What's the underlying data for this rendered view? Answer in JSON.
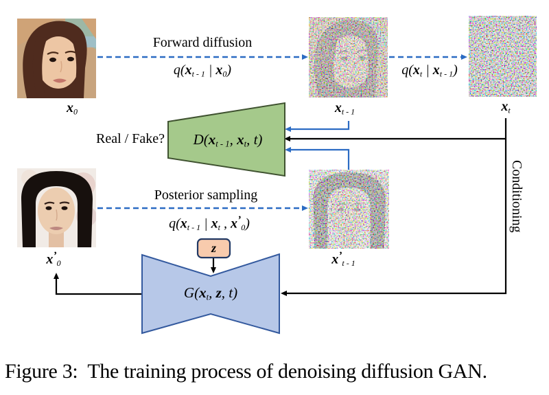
{
  "caption": "Figure 3:  The training process of denoising diffusion GAN.",
  "labels": {
    "forward_diffusion": "Forward diffusion",
    "posterior_sampling": "Posterior sampling",
    "real_fake": "Real / Fake?",
    "conditioning": "Conditioning"
  },
  "colors": {
    "arrow_blue": "#2b6bc3",
    "line_black": "#000000",
    "discriminator_fill": "#a5c98b",
    "discriminator_stroke": "#3f5230",
    "generator_fill": "#b7c8e8",
    "generator_stroke": "#33599e",
    "latent_fill": "#f8cbad",
    "latent_stroke": "#203864"
  },
  "formulas": {
    "q_forward": [
      [
        "i",
        "q("
      ],
      [
        "bi",
        "x"
      ],
      [
        "sub",
        "t - 1"
      ],
      [
        "i",
        " | "
      ],
      [
        "bi",
        "x"
      ],
      [
        "sub",
        "0"
      ],
      [
        "i",
        ")"
      ]
    ],
    "q_noise": [
      [
        "i",
        "q("
      ],
      [
        "bi",
        "x"
      ],
      [
        "sub",
        "t"
      ],
      [
        "i",
        " | "
      ],
      [
        "bi",
        "x"
      ],
      [
        "sub",
        "t - 1"
      ],
      [
        "i",
        ")"
      ]
    ],
    "q_posterior": [
      [
        "i",
        "q("
      ],
      [
        "bi",
        "x"
      ],
      [
        "sub",
        "t - 1"
      ],
      [
        "i",
        " | "
      ],
      [
        "bi",
        "x"
      ],
      [
        "sub",
        "t"
      ],
      [
        "i",
        " , "
      ],
      [
        "bi",
        "x"
      ],
      [
        "pr",
        "’"
      ],
      [
        "sub",
        "0"
      ],
      [
        "i",
        ")"
      ]
    ],
    "discriminator": [
      [
        "i",
        "D("
      ],
      [
        "bi",
        "x"
      ],
      [
        "sub",
        "t - 1"
      ],
      [
        "i",
        ", "
      ],
      [
        "bi",
        "x"
      ],
      [
        "sub",
        "t"
      ],
      [
        "i",
        ", t)"
      ]
    ],
    "generator": [
      [
        "i",
        "G("
      ],
      [
        "bi",
        "x"
      ],
      [
        "sub",
        "t"
      ],
      [
        "i",
        ", "
      ],
      [
        "bi",
        "z"
      ],
      [
        "i",
        ", t)"
      ]
    ],
    "x0": [
      [
        "bi",
        "x"
      ],
      [
        "sub",
        "0"
      ]
    ],
    "xt1": [
      [
        "bi",
        "x"
      ],
      [
        "sub",
        "t - 1"
      ]
    ],
    "xt": [
      [
        "bi",
        "x"
      ],
      [
        "sub",
        "t"
      ]
    ],
    "x0_prime": [
      [
        "bi",
        "x"
      ],
      [
        "pr",
        "’"
      ],
      [
        "sub",
        "0"
      ]
    ],
    "xt1_prime": [
      [
        "bi",
        "x"
      ],
      [
        "pr",
        "’"
      ],
      [
        "sub",
        "t - 1"
      ]
    ],
    "z": [
      [
        "bi",
        "z"
      ]
    ]
  }
}
